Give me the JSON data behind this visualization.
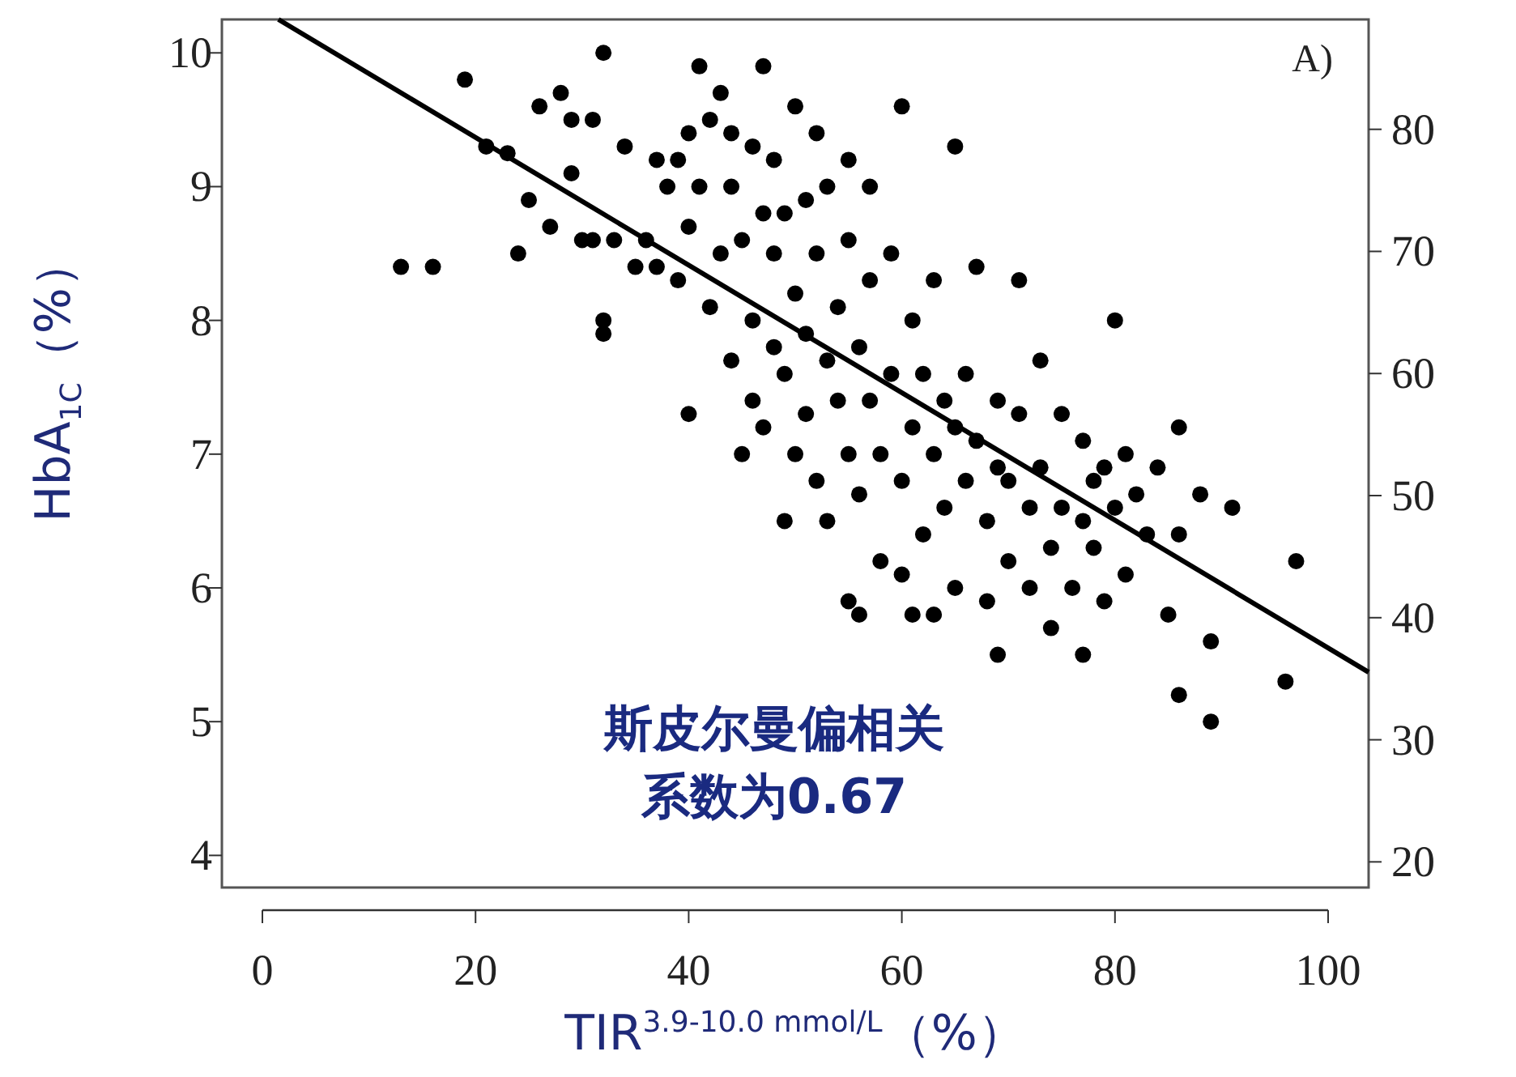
{
  "chart_data": {
    "type": "scatter",
    "xlabel": "TIR$^{3.9-10.0 mmol/L}$（%）",
    "ylabel": "HbA$_{1C}$（%）",
    "annotations": [
      "A)",
      "斯皮尔曼偏相关系数为0.67"
    ],
    "xlim": [
      -3.8,
      103.8
    ],
    "ylim": [
      3.76,
      10.25
    ],
    "xticks": [
      0,
      20,
      40,
      60,
      80,
      100
    ],
    "yticks": [
      4,
      5,
      6,
      7,
      8,
      9,
      10
    ],
    "y2lim": [
      17.9,
      89.0
    ],
    "y2ticks": [
      20,
      30,
      40,
      50,
      60,
      70,
      80
    ],
    "series": [
      {
        "marker": "circle",
        "color": "#000000",
        "x": [
          13,
          16,
          19,
          21,
          23,
          24,
          25,
          26,
          27,
          28,
          29,
          29,
          30,
          31,
          31,
          32,
          32,
          32,
          33,
          34,
          35,
          36,
          37,
          37,
          38,
          39,
          39,
          40,
          40,
          40,
          41,
          41,
          42,
          42,
          43,
          43,
          44,
          44,
          44,
          45,
          45,
          46,
          46,
          46,
          47,
          47,
          47,
          48,
          48,
          48,
          49,
          49,
          49,
          50,
          50,
          50,
          51,
          51,
          51,
          52,
          52,
          52,
          53,
          53,
          53,
          54,
          54,
          55,
          55,
          55,
          55,
          56,
          56,
          56,
          57,
          57,
          57,
          58,
          58,
          59,
          59,
          60,
          60,
          60,
          61,
          61,
          61,
          62,
          62,
          63,
          63,
          63,
          64,
          64,
          65,
          65,
          65,
          66,
          66,
          67,
          67,
          68,
          68,
          69,
          69,
          69,
          70,
          70,
          71,
          71,
          72,
          72,
          73,
          73,
          74,
          74,
          75,
          75,
          76,
          77,
          77,
          77,
          78,
          78,
          79,
          79,
          80,
          80,
          81,
          81,
          82,
          83,
          84,
          85,
          86,
          86,
          86,
          88,
          89,
          89,
          91,
          97,
          96
        ],
        "values": [
          8.4,
          8.4,
          9.8,
          9.3,
          9.25,
          8.5,
          8.9,
          9.6,
          8.7,
          9.7,
          9.5,
          9.1,
          8.6,
          8.6,
          9.5,
          10.0,
          8.0,
          7.9,
          8.6,
          9.3,
          8.4,
          8.6,
          9.2,
          8.4,
          9.0,
          9.2,
          8.3,
          9.4,
          8.7,
          7.3,
          9.9,
          9.0,
          9.5,
          8.1,
          9.7,
          8.5,
          9.4,
          9.0,
          7.7,
          8.6,
          7.0,
          9.3,
          8.0,
          7.4,
          9.9,
          8.8,
          7.2,
          9.2,
          8.5,
          7.8,
          8.8,
          7.6,
          6.5,
          9.6,
          8.2,
          7.0,
          8.9,
          7.9,
          7.3,
          9.4,
          8.5,
          6.8,
          9.0,
          7.7,
          6.5,
          8.1,
          7.4,
          9.2,
          8.6,
          7.0,
          5.9,
          7.8,
          6.7,
          5.8,
          9.0,
          8.3,
          7.4,
          6.2,
          7.0,
          7.6,
          8.5,
          9.6,
          6.8,
          6.1,
          8.0,
          7.2,
          5.8,
          7.6,
          6.4,
          8.3,
          7.0,
          5.8,
          7.4,
          6.6,
          9.3,
          7.2,
          6.0,
          7.6,
          6.8,
          8.4,
          7.1,
          6.5,
          5.9,
          7.4,
          6.9,
          5.5,
          6.8,
          6.2,
          8.3,
          7.3,
          6.6,
          6.0,
          7.7,
          6.9,
          6.3,
          5.7,
          7.3,
          6.6,
          6.0,
          7.1,
          6.5,
          5.5,
          6.8,
          6.3,
          6.9,
          5.9,
          8.0,
          6.6,
          7.0,
          6.1,
          6.7,
          6.4,
          6.9,
          5.8,
          7.2,
          6.4,
          5.2,
          6.7,
          5.0,
          5.6,
          6.6,
          6.2,
          5.3
        ]
      },
      {
        "type": "line",
        "color": "#000000",
        "x": [
          1.5,
          103.8
        ],
        "values": [
          10.25,
          5.37
        ]
      }
    ]
  }
}
